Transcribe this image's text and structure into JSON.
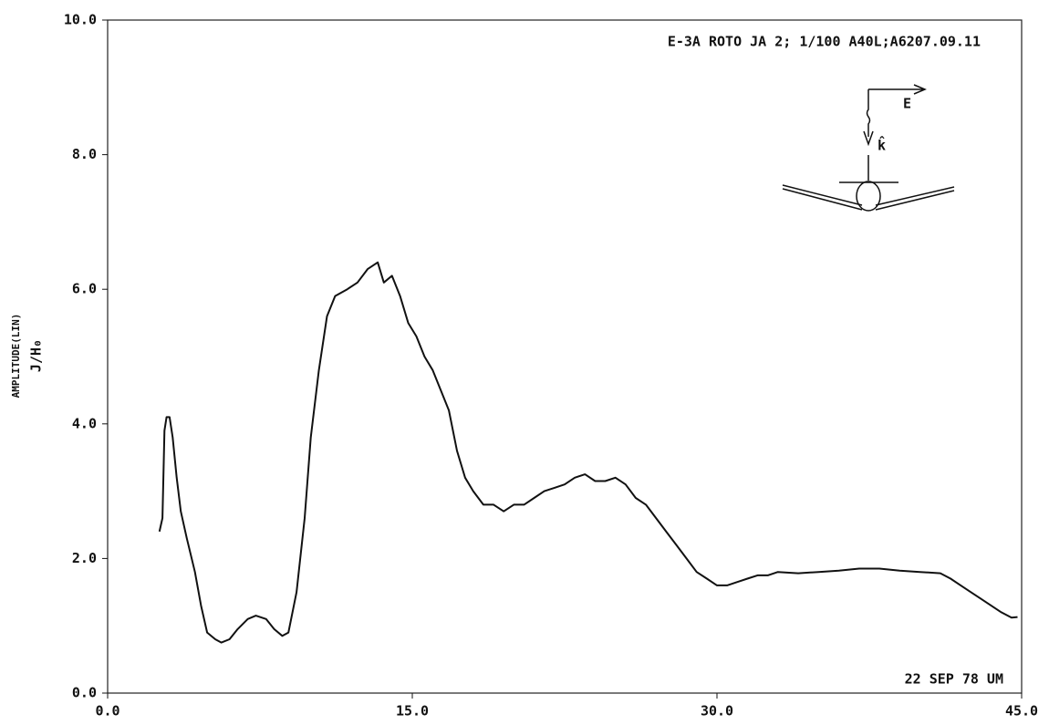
{
  "chart_data": {
    "type": "line",
    "annotations": [
      "E-3A ROTO JA 2; 1/100 A40L;A6207.09.11",
      "22 SEP 78 UM",
      "E",
      "k̂"
    ],
    "ylabel": "AMPLITUDE(LIN)",
    "ylabel2": "J/H₀",
    "x": [
      2.55,
      2.7,
      2.8,
      2.9,
      3.05,
      3.2,
      3.4,
      3.6,
      3.9,
      4.3,
      4.6,
      4.9,
      5.3,
      5.6,
      6.0,
      6.4,
      6.9,
      7.3,
      7.8,
      8.2,
      8.6,
      8.9,
      9.3,
      9.7,
      10.0,
      10.4,
      10.8,
      11.2,
      11.8,
      12.3,
      12.8,
      13.3,
      13.6,
      14.0,
      14.4,
      14.8,
      15.2,
      15.6,
      16.0,
      16.4,
      16.8,
      17.2,
      17.6,
      18.0,
      18.5,
      19.0,
      19.5,
      20.0,
      20.5,
      21.0,
      21.5,
      22.0,
      22.5,
      23.0,
      23.5,
      24.0,
      24.5,
      25.0,
      25.5,
      26.0,
      26.5,
      27.0,
      27.5,
      28.0,
      28.5,
      29.0,
      29.5,
      30.0,
      30.5,
      31.0,
      31.5,
      32.0,
      32.5,
      33.0,
      34.0,
      35.0,
      36.0,
      37.0,
      38.0,
      39.0,
      40.0,
      41.0,
      41.5,
      42.0,
      42.5,
      43.0,
      43.5,
      44.0,
      44.5,
      44.8
    ],
    "series": [
      {
        "color": "#111111",
        "values": [
          2.4,
          2.6,
          3.9,
          4.1,
          4.1,
          3.8,
          3.2,
          2.7,
          2.3,
          1.8,
          1.3,
          0.9,
          0.8,
          0.75,
          0.8,
          0.95,
          1.1,
          1.15,
          1.1,
          0.95,
          0.85,
          0.9,
          1.5,
          2.6,
          3.8,
          4.8,
          5.6,
          5.9,
          6.0,
          6.1,
          6.3,
          6.4,
          6.1,
          6.2,
          5.9,
          5.5,
          5.3,
          5.0,
          4.8,
          4.5,
          4.2,
          3.6,
          3.2,
          3.0,
          2.8,
          2.8,
          2.7,
          2.8,
          2.8,
          2.9,
          3.0,
          3.05,
          3.1,
          3.2,
          3.25,
          3.15,
          3.15,
          3.2,
          3.1,
          2.9,
          2.8,
          2.6,
          2.4,
          2.2,
          2.0,
          1.8,
          1.7,
          1.6,
          1.6,
          1.65,
          1.7,
          1.75,
          1.75,
          1.8,
          1.78,
          1.8,
          1.82,
          1.85,
          1.85,
          1.82,
          1.8,
          1.78,
          1.7,
          1.6,
          1.5,
          1.4,
          1.3,
          1.2,
          1.12,
          1.13
        ]
      }
    ],
    "xlim": [
      0,
      45
    ],
    "ylim": [
      0,
      10
    ],
    "xticks": [
      {
        "value": 0,
        "label": "0.0"
      },
      {
        "value": 15,
        "label": "15.0"
      },
      {
        "value": 30,
        "label": "30.0"
      },
      {
        "value": 45,
        "label": "45.0"
      }
    ],
    "yticks": [
      {
        "value": 0,
        "label": "0.0"
      },
      {
        "value": 2,
        "label": "2.0"
      },
      {
        "value": 4,
        "label": "4.0"
      },
      {
        "value": 6,
        "label": "6.0"
      },
      {
        "value": 8,
        "label": "8.0"
      },
      {
        "value": 10,
        "label": "10.0"
      }
    ]
  }
}
